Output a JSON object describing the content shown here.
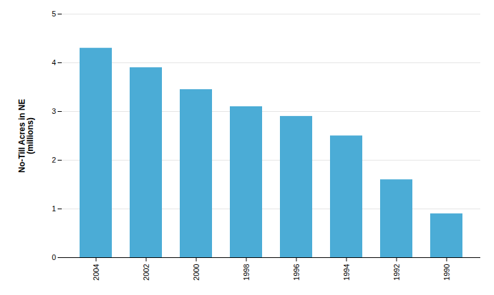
{
  "chart_data": {
    "type": "bar",
    "ylabel": "No-Till Acres in NE\n(millions)",
    "categories": [
      "2004",
      "2002",
      "2000",
      "1998",
      "1996",
      "1994",
      "1992",
      "1990"
    ],
    "values": [
      4.3,
      3.9,
      3.45,
      3.1,
      2.9,
      2.5,
      1.6,
      0.9
    ],
    "color": "#4BACD6",
    "ylim": [
      0,
      5
    ],
    "yticks": [
      0,
      1,
      2,
      3,
      4,
      5
    ],
    "grid": true
  }
}
